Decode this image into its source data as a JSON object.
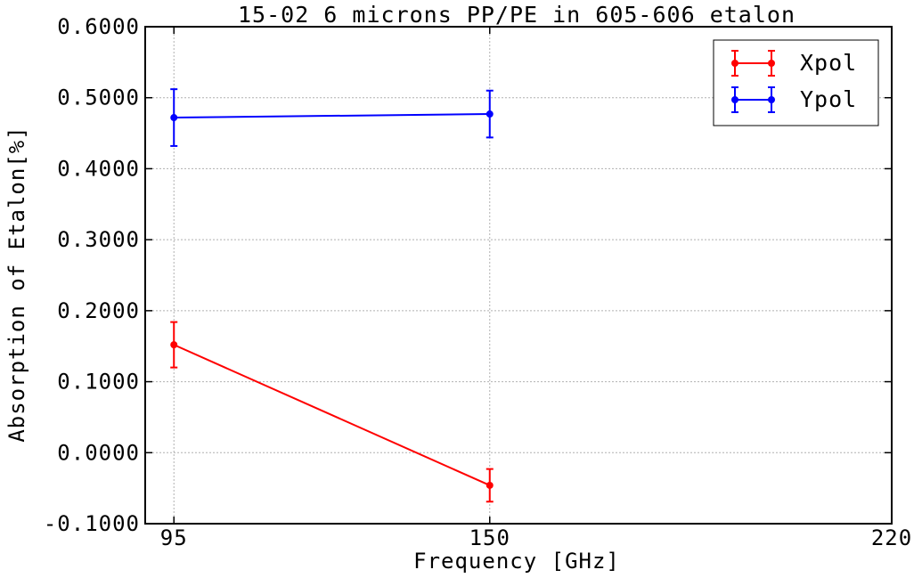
{
  "chart_data": {
    "type": "line",
    "title": "15-02 6 microns PP/PE in 605-606 etalon",
    "xlabel": "Frequency [GHz]",
    "ylabel": "Absorption of Etalon[%]",
    "x": [
      95,
      150
    ],
    "x_ticks": [
      95,
      150,
      220
    ],
    "x_tick_labels": [
      "95",
      "150",
      "220"
    ],
    "xlim": [
      90,
      220
    ],
    "ylim": [
      -0.1,
      0.6
    ],
    "y_ticks": [
      -0.1,
      0.0,
      0.1,
      0.2,
      0.3,
      0.4,
      0.5,
      0.6
    ],
    "y_tick_labels": [
      "-0.1000",
      "0.0000",
      "0.1000",
      "0.2000",
      "0.3000",
      "0.4000",
      "0.5000",
      "0.6000"
    ],
    "grid": true,
    "legend_position": "top-right",
    "series": [
      {
        "name": "Xpol",
        "color": "#ff0000",
        "values": [
          0.152,
          -0.046
        ],
        "errors": [
          0.032,
          0.023
        ]
      },
      {
        "name": "Ypol",
        "color": "#0000ff",
        "values": [
          0.472,
          0.477
        ],
        "errors": [
          0.04,
          0.033
        ]
      }
    ]
  }
}
